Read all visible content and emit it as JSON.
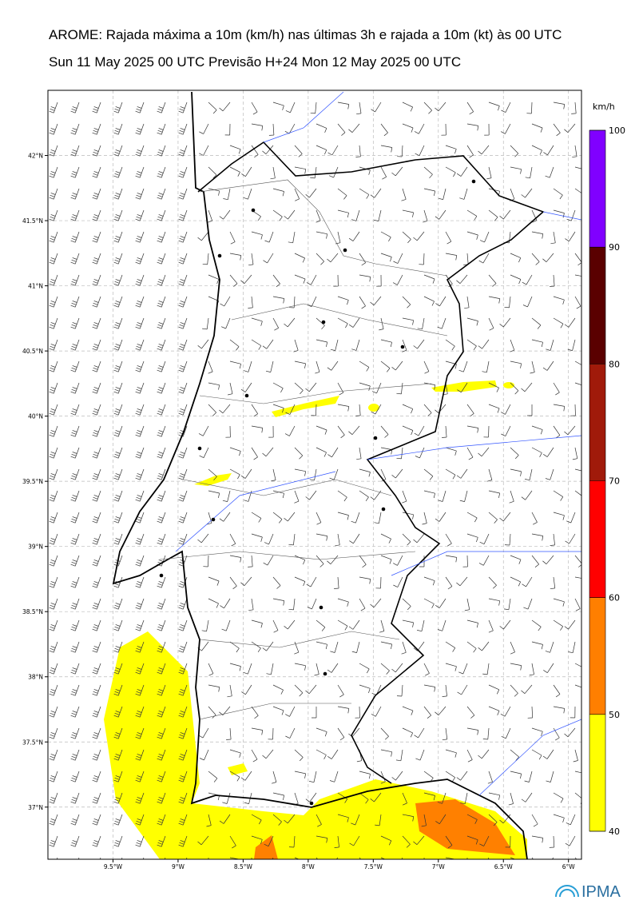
{
  "title": "AROME: Rajada máxima a 10m (km/h) nas últimas 3h e rajada a 10m (kt) às 00 UTC",
  "subtitle": "Sun 11 May 2025 00 UTC Previsão H+24 Mon 12 May 2025 00 UTC",
  "map": {
    "lonlim": [
      -10,
      -5.9
    ],
    "latlim": [
      36.6,
      42.5
    ],
    "lon_ticks": [
      {
        "value": -9.5,
        "label": "9.5°W"
      },
      {
        "value": -9,
        "label": "9°W"
      },
      {
        "value": -8.5,
        "label": "8.5°W"
      },
      {
        "value": -8,
        "label": "8°W"
      },
      {
        "value": -7.5,
        "label": "7.5°W"
      },
      {
        "value": -7,
        "label": "7°W"
      },
      {
        "value": -6.5,
        "label": "6.5°W"
      },
      {
        "value": -6,
        "label": "6°W"
      }
    ],
    "lat_ticks": [
      {
        "value": 42,
        "label": "42°N"
      },
      {
        "value": 41.5,
        "label": "41.5°N"
      },
      {
        "value": 41,
        "label": "41°N"
      },
      {
        "value": 40.5,
        "label": "40.5°N"
      },
      {
        "value": 40,
        "label": "40°N"
      },
      {
        "value": 39.5,
        "label": "39.5°N"
      },
      {
        "value": 39,
        "label": "39°N"
      },
      {
        "value": 38.5,
        "label": "38.5°N"
      },
      {
        "value": 38,
        "label": "38°N"
      },
      {
        "value": 37.5,
        "label": "37.5°N"
      },
      {
        "value": 37,
        "label": "37°N"
      }
    ]
  },
  "colorbar": {
    "unit": "km/h",
    "lim": [
      40,
      100
    ],
    "ticks": [
      40,
      50,
      60,
      70,
      80,
      90,
      100
    ],
    "colors": [
      "#ffff00",
      "#ff7f00",
      "#ff0000",
      "#a01a0a",
      "#5a0000",
      "#8000ff"
    ]
  },
  "logo": "IPMA"
}
